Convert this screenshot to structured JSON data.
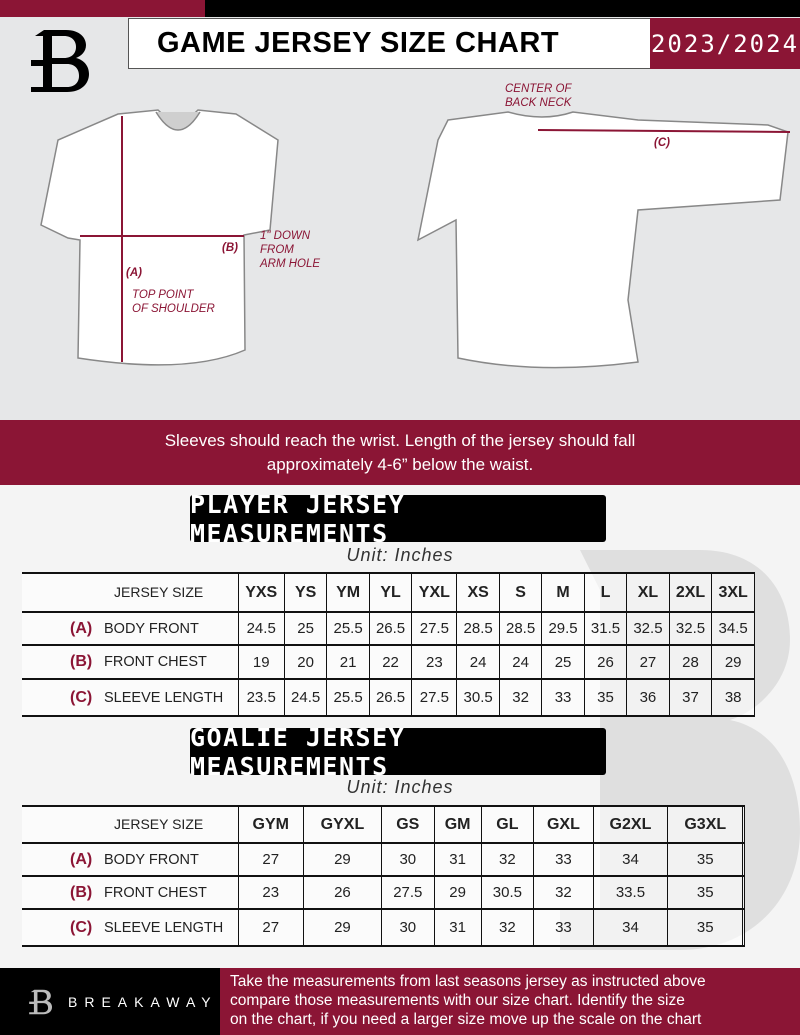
{
  "header": {
    "title": "GAME JERSEY SIZE CHART",
    "season": "2023/2024",
    "brand_colors": {
      "maroon": "#8b1535",
      "black": "#000000"
    }
  },
  "diagram": {
    "label_a": "(A)",
    "note_a": [
      "TOP POINT",
      "OF SHOULDER"
    ],
    "label_b": "(B)",
    "note_b": [
      "1\" DOWN",
      "FROM",
      "ARM HOLE"
    ],
    "label_c": "(C)",
    "note_c": [
      "CENTER OF",
      "BACK NECK"
    ]
  },
  "band": {
    "line1": "Sleeves should reach the wrist. Length of the jersey should fall",
    "line2": "approximately 4-6” below the waist."
  },
  "player": {
    "heading": "PLAYER JERSEY MEASUREMENTS",
    "unit": "Unit: Inches",
    "size_label": "JERSEY SIZE",
    "sizes": [
      "YXS",
      "YS",
      "YM",
      "YL",
      "YXL",
      "XS",
      "S",
      "M",
      "L",
      "XL",
      "2XL",
      "3XL"
    ],
    "rows": [
      {
        "letter": "(A)",
        "label": "BODY FRONT",
        "values": [
          "24.5",
          "25",
          "25.5",
          "26.5",
          "27.5",
          "28.5",
          "28.5",
          "29.5",
          "31.5",
          "32.5",
          "32.5",
          "34.5"
        ]
      },
      {
        "letter": "(B)",
        "label": "FRONT CHEST",
        "values": [
          "19",
          "20",
          "21",
          "22",
          "23",
          "24",
          "24",
          "25",
          "26",
          "27",
          "28",
          "29"
        ]
      },
      {
        "letter": "(C)",
        "label": "SLEEVE LENGTH",
        "values": [
          "23.5",
          "24.5",
          "25.5",
          "26.5",
          "27.5",
          "30.5",
          "32",
          "33",
          "35",
          "36",
          "37",
          "38"
        ]
      }
    ]
  },
  "goalie": {
    "heading": "GOALIE JERSEY MEASUREMENTS",
    "unit": "Unit: Inches",
    "size_label": "JERSEY SIZE",
    "sizes": [
      "GYM",
      "GYXL",
      "GS",
      "GM",
      "GL",
      "GXL",
      "G2XL",
      "G3XL",
      ""
    ],
    "rows": [
      {
        "letter": "(A)",
        "label": "BODY FRONT",
        "values": [
          "27",
          "29",
          "30",
          "31",
          "32",
          "33",
          "34",
          "35",
          ""
        ]
      },
      {
        "letter": "(B)",
        "label": "FRONT CHEST",
        "values": [
          "23",
          "26",
          "27.5",
          "29",
          "30.5",
          "32",
          "33.5",
          "35",
          ""
        ]
      },
      {
        "letter": "(C)",
        "label": "SLEEVE LENGTH",
        "values": [
          "27",
          "29",
          "30",
          "31",
          "32",
          "33",
          "34",
          "35",
          ""
        ]
      }
    ]
  },
  "footer": {
    "brand": "BREAKAWAY",
    "text": [
      "Take the measurements from last seasons jersey as instructed above",
      "compare those measurements  with our size chart. Identify the size",
      "on the chart, if you need a larger size move up the scale on the chart"
    ]
  }
}
